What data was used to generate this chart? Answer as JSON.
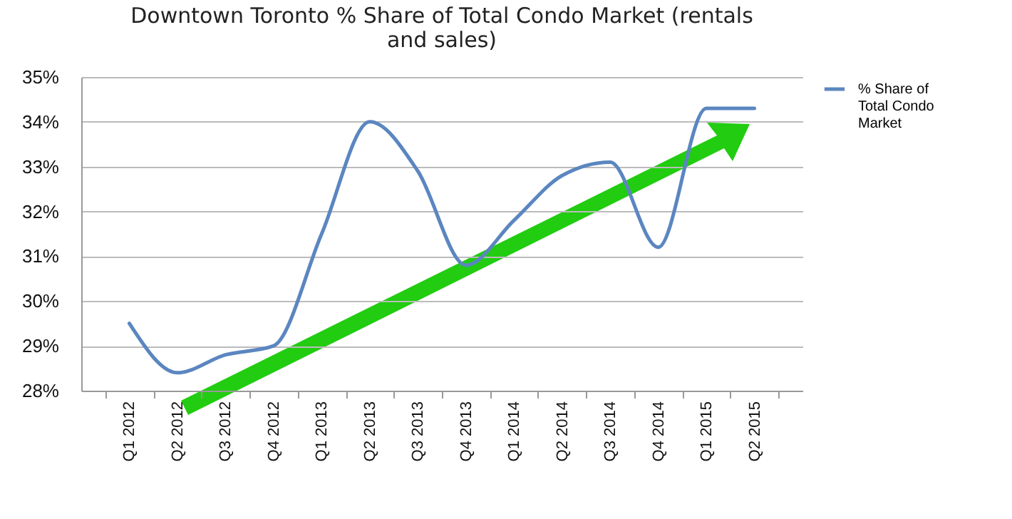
{
  "chart_data": {
    "type": "line",
    "title": "Downtown Toronto % Share of Total Condo Market (rentals and sales)",
    "categories": [
      "Q1 2012",
      "Q2 2012",
      "Q3 2012",
      "Q4 2012",
      "Q1 2013",
      "Q2 2013",
      "Q3 2013",
      "Q4 2013",
      "Q1 2014",
      "Q2 2014",
      "Q3 2014",
      "Q4 2014",
      "Q1 2015",
      "Q2 2015"
    ],
    "series": [
      {
        "name": "% Share of Total Condo Market",
        "color": "#5b86c0",
        "values": [
          29.5,
          28.4,
          28.8,
          29.0,
          31.5,
          34.0,
          32.9,
          30.8,
          31.8,
          32.8,
          33.1,
          31.2,
          34.3,
          34.3
        ]
      }
    ],
    "ylim": [
      28,
      35
    ],
    "yticks": [
      {
        "value": 28,
        "label": "28%"
      },
      {
        "value": 29,
        "label": "29%"
      },
      {
        "value": 30,
        "label": "30%"
      },
      {
        "value": 31,
        "label": "31%"
      },
      {
        "value": 32,
        "label": "32%"
      },
      {
        "value": 33,
        "label": "33%"
      },
      {
        "value": 34,
        "label": "34%"
      },
      {
        "value": 35,
        "label": "35%"
      }
    ],
    "grid": "y",
    "legend": "right",
    "marker": "none",
    "line_style": "solid"
  }
}
